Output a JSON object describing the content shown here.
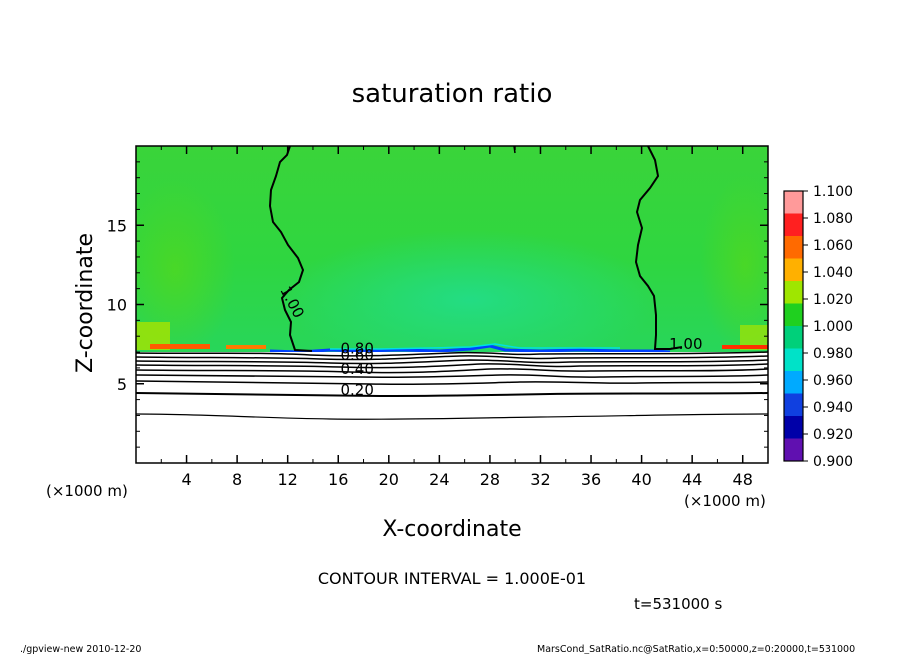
{
  "chart_data": {
    "type": "heatmap",
    "title": "saturation ratio",
    "xlabel": "X-coordinate",
    "ylabel": "Z-coordinate",
    "x_unit": "(×1000 m)",
    "xlim": [
      0,
      50
    ],
    "ylim": [
      0,
      20
    ],
    "x_ticks": [
      4,
      8,
      12,
      16,
      20,
      24,
      28,
      32,
      36,
      40,
      44,
      48
    ],
    "y_ticks": [
      5,
      10,
      15
    ],
    "colorbar": {
      "levels": [
        "1.100",
        "1.080",
        "1.060",
        "1.040",
        "1.020",
        "1.000",
        "0.980",
        "0.960",
        "0.940",
        "0.920",
        "0.900"
      ],
      "colors": [
        "#ff9a9a",
        "#ff2020",
        "#ff6a00",
        "#ffb000",
        "#9fe600",
        "#1fd01f",
        "#00d07a",
        "#00e2c8",
        "#00aaff",
        "#1040e0",
        "#0000a8",
        "#6010b0"
      ]
    },
    "contour_labels": [
      {
        "text": "1.00",
        "x": 12.0,
        "z": 10.0,
        "rotate": 62
      },
      {
        "text": "1.00",
        "x": 43.5,
        "z": 7.2,
        "rotate": 0
      },
      {
        "text": "0.80",
        "x": 17.5,
        "z": 6.9,
        "rotate": 0
      },
      {
        "text": "0.60",
        "x": 17.5,
        "z": 6.5,
        "rotate": 0
      },
      {
        "text": "0.40",
        "x": 17.5,
        "z": 5.6,
        "rotate": 0
      },
      {
        "text": "0.20",
        "x": 17.5,
        "z": 4.3,
        "rotate": 0
      }
    ],
    "contour_interval": "CONTOUR INTERVAL = 1.000E-01",
    "time": "t=531000 s"
  },
  "footer": {
    "left": "./gpview-new   2010-12-20",
    "right": "MarsCond_SatRatio.nc@SatRatio,x=0:50000,z=0:20000,t=531000"
  }
}
